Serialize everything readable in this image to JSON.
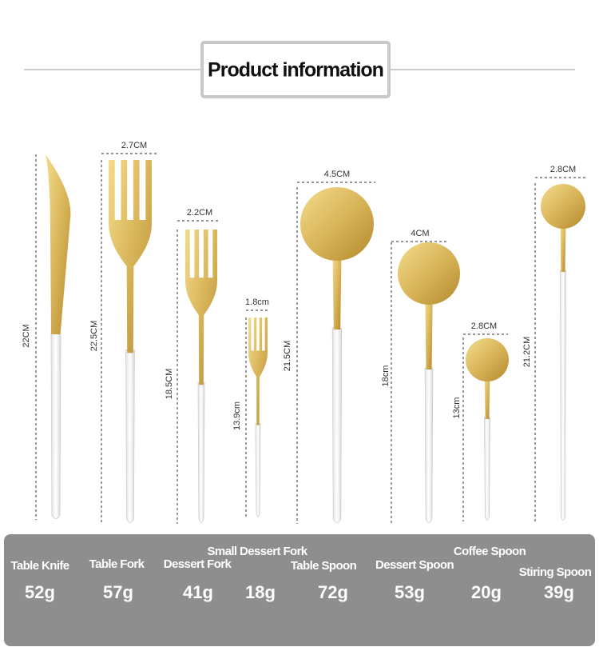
{
  "header": {
    "title": "Product information"
  },
  "items": [
    {
      "name": "Table Knife",
      "weight": "52g",
      "length": "22CM"
    },
    {
      "name": "Table Fork",
      "weight": "57g",
      "length": "22.5CM",
      "width": "2.7CM"
    },
    {
      "name": "Dessert Fork",
      "weight": "41g",
      "length": "18.5CM",
      "width": "2.2CM"
    },
    {
      "name": "Small Dessert Fork",
      "weight": "18g",
      "length": "13.9cm",
      "width": "1.8cm"
    },
    {
      "name": "Table Spoon",
      "weight": "72g",
      "length": "21.5CM",
      "width": "4.5CM"
    },
    {
      "name": "Dessert Spoon",
      "weight": "53g",
      "length": "18cm",
      "width": "4CM"
    },
    {
      "name": "Coffee Spoon",
      "weight": "20g",
      "length": "13cm",
      "width": "2.8CM"
    },
    {
      "name": "Stiring Spoon",
      "weight": "39g",
      "length": "21.2CM",
      "width": "2.8CM"
    }
  ]
}
